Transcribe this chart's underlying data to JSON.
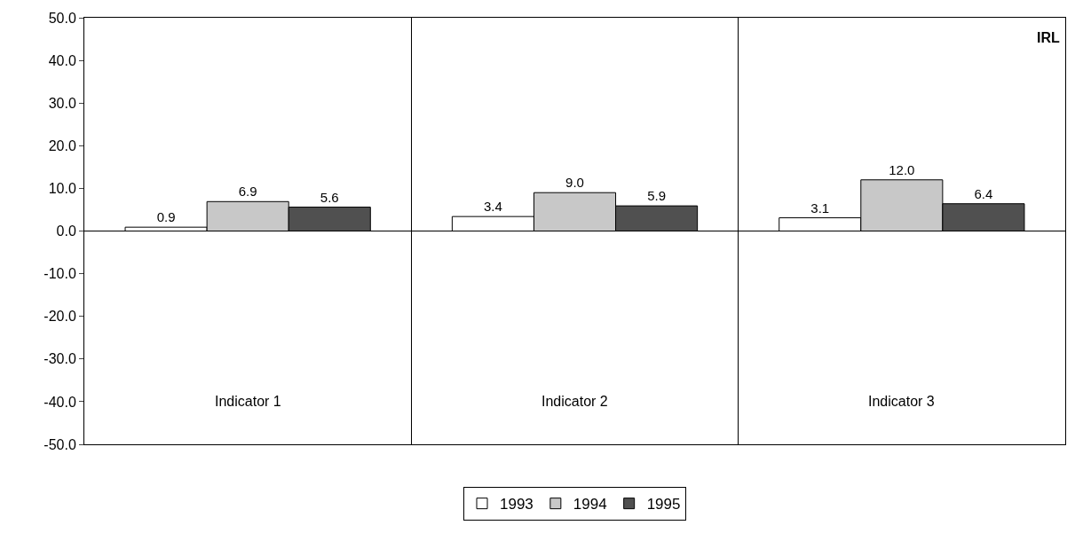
{
  "chart_data": {
    "type": "bar",
    "categories": [
      "Indicator 1",
      "Indicator 2",
      "Indicator 3"
    ],
    "series": [
      {
        "name": "1993",
        "color": "#ffffff",
        "values": [
          0.9,
          3.4,
          3.1
        ]
      },
      {
        "name": "1994",
        "color": "#c8c8c8",
        "values": [
          6.9,
          9.0,
          12.0
        ]
      },
      {
        "name": "1995",
        "color": "#505050",
        "values": [
          5.6,
          5.9,
          6.4
        ]
      }
    ],
    "value_labels": [
      [
        "0.9",
        "3.4",
        "3.1"
      ],
      [
        "6.9",
        "9.0",
        "12.0"
      ],
      [
        "5.6",
        "5.9",
        "6.4"
      ]
    ],
    "ylim": [
      -50,
      50
    ],
    "yticks": [
      {
        "value": -50,
        "label": "-50.0"
      },
      {
        "value": -40,
        "label": "-40.0"
      },
      {
        "value": -30,
        "label": "-30.0"
      },
      {
        "value": -20,
        "label": "-20.0"
      },
      {
        "value": -10,
        "label": "-10.0"
      },
      {
        "value": 0,
        "label": "0.0"
      },
      {
        "value": 10,
        "label": "10.0"
      },
      {
        "value": 20,
        "label": "20.0"
      },
      {
        "value": 30,
        "label": "30.0"
      },
      {
        "value": 40,
        "label": "40.0"
      },
      {
        "value": 50,
        "label": "50.0"
      }
    ],
    "annotations": [
      "IRL"
    ],
    "ref_lines": [
      {
        "axis": "y",
        "value": 0,
        "color": "#000000"
      }
    ],
    "grid": "x",
    "legend": "bottom"
  }
}
